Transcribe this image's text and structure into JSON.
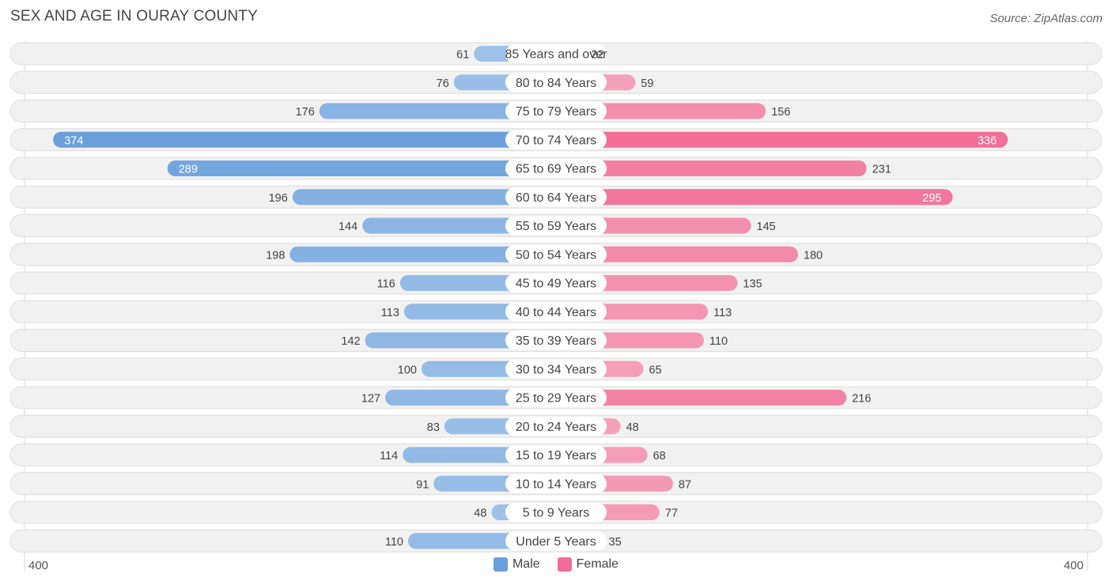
{
  "header": {
    "title": "SEX AND AGE IN OURAY COUNTY",
    "source": "Source: ZipAtlas.com"
  },
  "legend": {
    "male_label": "Male",
    "female_label": "Female"
  },
  "axis": {
    "left_tick": "400",
    "right_tick": "400"
  },
  "colors": {
    "male": "#6a9fdc",
    "male_light": "#a7c7ea",
    "female": "#f06c97",
    "female_light": "#f6a8c1",
    "row_bg": "#f1f1f1",
    "row_border": "#dddddd"
  },
  "chart_data": {
    "type": "bar",
    "title": "SEX AND AGE IN OURAY COUNTY",
    "orientation": "horizontal-diverging",
    "xlim": [
      -400,
      400
    ],
    "categories": [
      "85 Years and over",
      "80 to 84 Years",
      "75 to 79 Years",
      "70 to 74 Years",
      "65 to 69 Years",
      "60 to 64 Years",
      "55 to 59 Years",
      "50 to 54 Years",
      "45 to 49 Years",
      "40 to 44 Years",
      "35 to 39 Years",
      "30 to 34 Years",
      "25 to 29 Years",
      "20 to 24 Years",
      "15 to 19 Years",
      "10 to 14 Years",
      "5 to 9 Years",
      "Under 5 Years"
    ],
    "series": [
      {
        "name": "Male",
        "values": [
          61,
          76,
          176,
          374,
          289,
          196,
          144,
          198,
          116,
          113,
          142,
          100,
          127,
          83,
          114,
          91,
          48,
          110
        ]
      },
      {
        "name": "Female",
        "values": [
          22,
          59,
          156,
          336,
          231,
          295,
          145,
          180,
          135,
          113,
          110,
          65,
          216,
          48,
          68,
          87,
          77,
          35
        ]
      }
    ],
    "legend_position": "bottom-center"
  }
}
